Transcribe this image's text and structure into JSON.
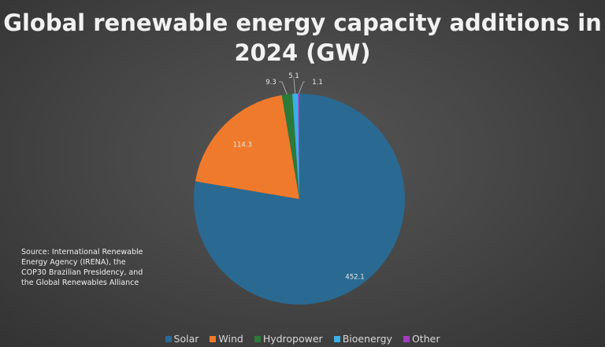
{
  "chart_data": {
    "type": "pie",
    "title": "Global renewable energy capacity additions in 2024 (GW)",
    "categories": [
      "Solar",
      "Wind",
      "Hydropower",
      "Bioenergy",
      "Other"
    ],
    "values": [
      452.1,
      114.3,
      9.3,
      5.1,
      1.1
    ],
    "data_labels": [
      "452.1",
      "114.3",
      "9.3",
      "5.1",
      "1.1"
    ],
    "colors": [
      "#2a6a92",
      "#f07a2c",
      "#2c7a3a",
      "#3ab0e8",
      "#a03cc0"
    ],
    "legend_position": "bottom",
    "annotation": "Source: International Renewable Energy Agency (IRENA), the COP30 Brazilian Presidency, and the Global Renewables Alliance"
  }
}
